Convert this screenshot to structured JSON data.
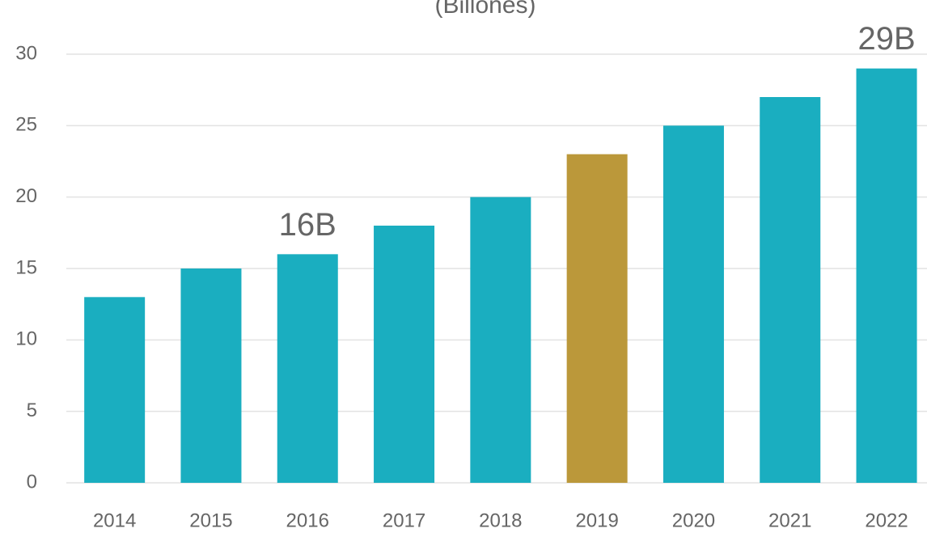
{
  "chart_data": {
    "type": "bar",
    "title": "(Billones)",
    "categories": [
      "2014",
      "2015",
      "2016",
      "2017",
      "2018",
      "2019",
      "2020",
      "2021",
      "2022"
    ],
    "values": [
      13,
      15,
      16,
      18,
      20,
      23,
      25,
      27,
      29
    ],
    "value_labels": [
      null,
      null,
      "16B",
      null,
      null,
      null,
      null,
      null,
      "29B"
    ],
    "colors": [
      "#1aaec0",
      "#1aaec0",
      "#1aaec0",
      "#1aaec0",
      "#1aaec0",
      "#bb983a",
      "#1aaec0",
      "#1aaec0",
      "#1aaec0"
    ],
    "ylim": [
      0,
      30
    ],
    "yticks": [
      0,
      5,
      10,
      15,
      20,
      25,
      30
    ],
    "grid": true
  }
}
